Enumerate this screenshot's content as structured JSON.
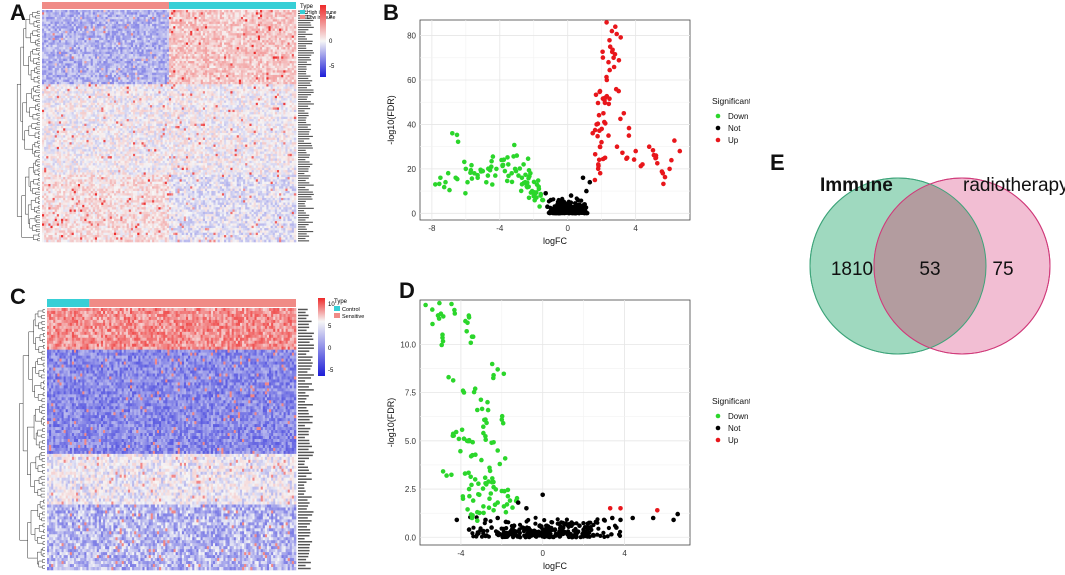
{
  "panel_labels": {
    "a": "A",
    "b": "B",
    "c": "C",
    "d": "D",
    "e": "E"
  },
  "colors": {
    "heat_high": "#ee2a2a",
    "heat_mid": "#f6f6f6",
    "heat_low": "#1d1dd8",
    "group_teal": "#37cfd6",
    "group_salmon": "#f08b86",
    "down": "#2bd62b",
    "not": "#000000",
    "up": "#e8161b",
    "venn_left": "#9fd9bf",
    "venn_left_stroke": "#3ea47a",
    "venn_right": "#f0b3cb",
    "venn_right_stroke": "#d03a7a",
    "venn_overlap": "#b39c9f"
  },
  "chart_data": [
    {
      "id": "A",
      "type": "heatmap",
      "legend_title": "Type",
      "groups": [
        "High immune",
        "Low immune"
      ],
      "color_scale": {
        "ticks": [
          5,
          0,
          -5
        ],
        "range": [
          -7,
          7
        ]
      },
      "n_rows": 100,
      "n_cols": 120
    },
    {
      "id": "B",
      "type": "scatter",
      "title": "",
      "xlabel": "logFC",
      "ylabel": "-log10(FDR)",
      "xlim": [
        -8.7,
        7.2
      ],
      "ylim": [
        -3,
        87
      ],
      "xticks": [
        -8,
        -4,
        0,
        4
      ],
      "yticks": [
        0,
        20,
        40,
        60,
        80
      ],
      "legend_title": "Significant",
      "series": [
        {
          "name": "Down",
          "points": [
            [
              -7.8,
              13
            ],
            [
              -7.5,
              16
            ],
            [
              -6.8,
              36
            ],
            [
              -7.2,
              14
            ],
            [
              -6.6,
              16
            ],
            [
              -6.0,
              20
            ],
            [
              -5.9,
              14
            ],
            [
              -5.5,
              18
            ],
            [
              -5.3,
              16
            ],
            [
              -5.0,
              19
            ],
            [
              -4.7,
              17
            ],
            [
              -4.5,
              21
            ],
            [
              -4.2,
              20
            ],
            [
              -3.9,
              24
            ],
            [
              -3.7,
              19
            ],
            [
              -3.5,
              22
            ],
            [
              -3.3,
              18
            ],
            [
              -3.1,
              20
            ],
            [
              -2.9,
              17
            ],
            [
              -2.7,
              16
            ],
            [
              -2.5,
              14
            ],
            [
              -2.3,
              12
            ],
            [
              -2.1,
              10
            ],
            [
              -1.9,
              9
            ],
            [
              -1.7,
              11
            ],
            [
              -1.6,
              8
            ],
            [
              -1.5,
              6
            ],
            [
              -3.0,
              26
            ],
            [
              -2.6,
              22
            ],
            [
              -2.2,
              18
            ]
          ]
        },
        {
          "name": "Not",
          "points": [
            [
              -1.2,
              3
            ],
            [
              -0.8,
              2
            ],
            [
              -0.4,
              1
            ],
            [
              0.0,
              1.5
            ],
            [
              0.4,
              2
            ],
            [
              0.8,
              3
            ],
            [
              1.0,
              4
            ],
            [
              -1.0,
              6
            ],
            [
              0.6,
              6
            ],
            [
              -0.6,
              4
            ],
            [
              0.2,
              8
            ],
            [
              1.1,
              10
            ],
            [
              -1.3,
              9
            ],
            [
              1.3,
              14
            ],
            [
              0.9,
              16
            ]
          ]
        },
        {
          "name": "Up",
          "points": [
            [
              1.6,
              15
            ],
            [
              1.8,
              22
            ],
            [
              1.9,
              30
            ],
            [
              2.0,
              38
            ],
            [
              2.1,
              45
            ],
            [
              2.2,
              52
            ],
            [
              2.3,
              60
            ],
            [
              2.4,
              68
            ],
            [
              2.5,
              75
            ],
            [
              2.6,
              82
            ],
            [
              2.8,
              84
            ],
            [
              2.7,
              70
            ],
            [
              3.0,
              55
            ],
            [
              3.3,
              45
            ],
            [
              3.6,
              35
            ],
            [
              4.0,
              28
            ],
            [
              4.4,
              22
            ],
            [
              4.8,
              30
            ],
            [
              5.2,
              26
            ],
            [
              5.6,
              18
            ],
            [
              6.6,
              28
            ],
            [
              6.0,
              20
            ],
            [
              3.5,
              25
            ],
            [
              2.9,
              30
            ],
            [
              1.7,
              40
            ],
            [
              1.9,
              55
            ],
            [
              2.2,
              25
            ],
            [
              2.4,
              35
            ]
          ]
        }
      ]
    },
    {
      "id": "C",
      "type": "heatmap",
      "legend_title": "Type",
      "groups": [
        "Control",
        "Sensitive"
      ],
      "color_scale": {
        "ticks": [
          10,
          5,
          0,
          -5
        ],
        "range": [
          -7,
          11
        ]
      },
      "n_rows": 88,
      "n_cols": 120
    },
    {
      "id": "D",
      "type": "scatter",
      "title": "",
      "xlabel": "logFC",
      "ylabel": "-log10(FDR)",
      "xlim": [
        -6.0,
        7.2
      ],
      "ylim": [
        -0.4,
        12.3
      ],
      "xticks": [
        -4,
        0,
        4
      ],
      "yticks": [
        0.0,
        2.5,
        5.0,
        7.5,
        10.0
      ],
      "legend_title": "Significant",
      "series": [
        {
          "name": "Down",
          "points": [
            [
              -5.4,
              11.8
            ],
            [
              -5.1,
              11.5
            ],
            [
              -4.9,
              10.5
            ],
            [
              -4.3,
              11.6
            ],
            [
              -3.6,
              11.4
            ],
            [
              -4.6,
              8.3
            ],
            [
              -2.2,
              8.7
            ],
            [
              -2.4,
              8.4
            ],
            [
              -3.3,
              7.7
            ],
            [
              -3.9,
              7.6
            ],
            [
              -3.4,
              10.4
            ],
            [
              -2.7,
              7.0
            ],
            [
              -3.2,
              6.6
            ],
            [
              -2.8,
              6.1
            ],
            [
              -2.0,
              6.1
            ],
            [
              -4.1,
              5.1
            ],
            [
              -3.7,
              5.0
            ],
            [
              -2.9,
              5.4
            ],
            [
              -2.5,
              4.9
            ],
            [
              -2.2,
              4.5
            ],
            [
              -3.5,
              4.2
            ],
            [
              -3.0,
              4.0
            ],
            [
              -2.6,
              3.6
            ],
            [
              -2.1,
              3.8
            ],
            [
              -4.7,
              3.2
            ],
            [
              -3.8,
              3.3
            ],
            [
              -3.3,
              3.0
            ],
            [
              -2.8,
              2.8
            ],
            [
              -2.4,
              2.6
            ],
            [
              -2.0,
              2.4
            ],
            [
              -3.6,
              2.5
            ],
            [
              -3.1,
              2.2
            ],
            [
              -2.6,
              2.0
            ],
            [
              -2.2,
              1.8
            ],
            [
              -1.9,
              1.6
            ],
            [
              -3.4,
              1.9
            ],
            [
              -2.9,
              1.6
            ],
            [
              -2.4,
              1.4
            ],
            [
              -1.8,
              1.3
            ],
            [
              -1.6,
              1.9
            ],
            [
              -3.9,
              2.0
            ],
            [
              -3.2,
              1.3
            ]
          ]
        },
        {
          "name": "Not",
          "points": [
            [
              -4.2,
              0.9
            ],
            [
              -3.6,
              0.4
            ],
            [
              -2.8,
              0.9
            ],
            [
              -2.2,
              1.0
            ],
            [
              -1.8,
              0.8
            ],
            [
              -1.4,
              0.6
            ],
            [
              -1.0,
              0.5
            ],
            [
              -0.6,
              0.3
            ],
            [
              -0.2,
              0.2
            ],
            [
              0.2,
              0.3
            ],
            [
              0.6,
              0.4
            ],
            [
              1.0,
              0.5
            ],
            [
              1.4,
              0.6
            ],
            [
              1.8,
              0.6
            ],
            [
              2.2,
              0.7
            ],
            [
              2.6,
              0.8
            ],
            [
              3.0,
              0.9
            ],
            [
              3.4,
              1.0
            ],
            [
              3.8,
              0.9
            ],
            [
              4.4,
              1.0
            ],
            [
              5.4,
              1.0
            ],
            [
              6.4,
              0.9
            ],
            [
              6.6,
              1.2
            ],
            [
              -0.8,
              1.5
            ],
            [
              0.0,
              2.2
            ],
            [
              -1.2,
              1.8
            ],
            [
              0.8,
              0.7
            ],
            [
              2.0,
              0.4
            ],
            [
              -2.5,
              0.5
            ],
            [
              3.6,
              0.5
            ]
          ]
        },
        {
          "name": "Up",
          "points": [
            [
              3.3,
              1.5
            ],
            [
              3.8,
              1.5
            ],
            [
              5.6,
              1.4
            ]
          ]
        }
      ]
    },
    {
      "id": "E",
      "type": "venn",
      "sets": [
        {
          "name": "Immune",
          "only": 1810
        },
        {
          "name": "radiotherapy",
          "only": 75
        }
      ],
      "intersection": 53
    }
  ]
}
